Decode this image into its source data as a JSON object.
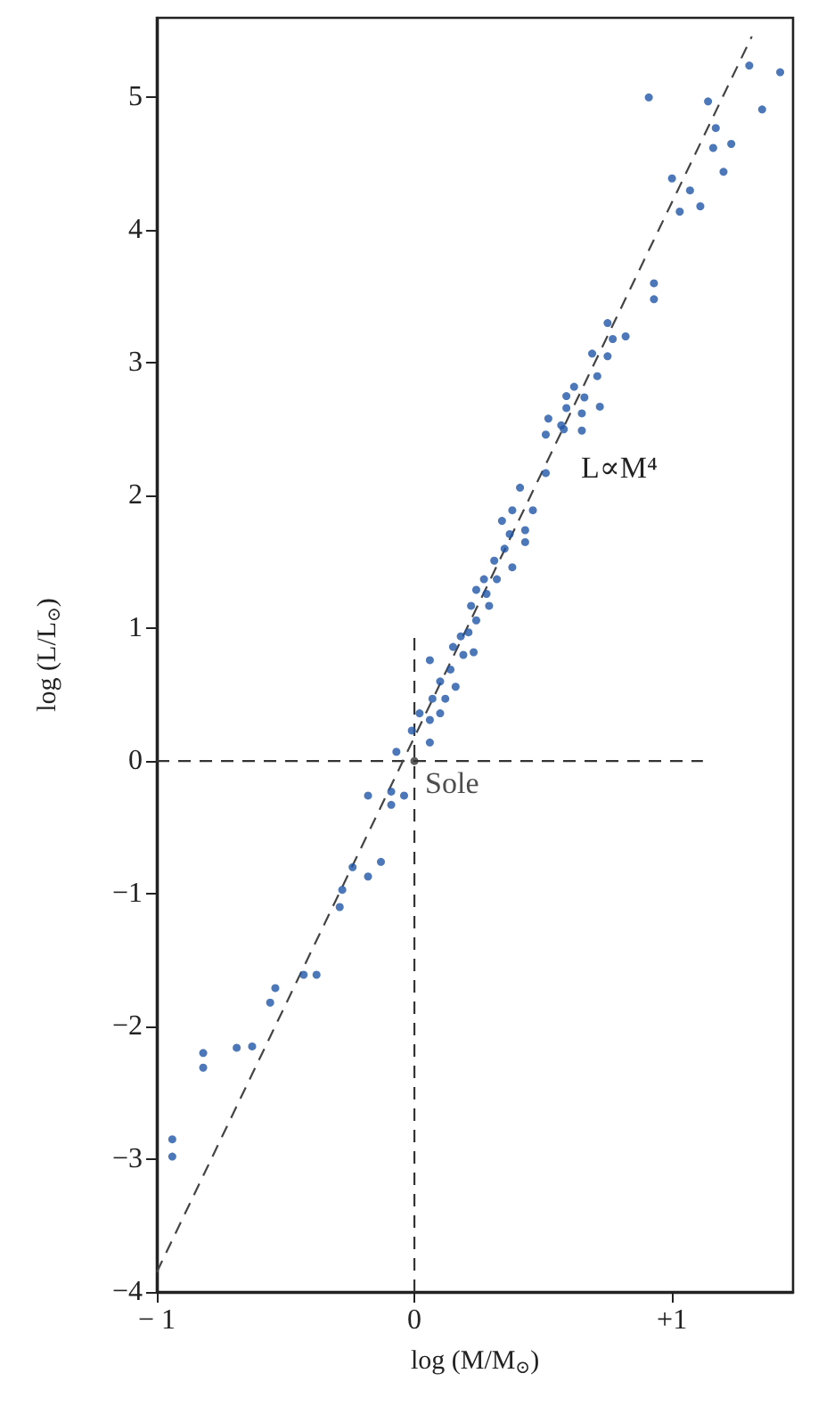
{
  "chart_data": {
    "type": "scatter",
    "xlabel": "log (M/M$_{⊙}$)",
    "ylabel": "log (L/L$_{⊙}$)",
    "xlim": [
      -1,
      1.47
    ],
    "ylim": [
      -4,
      5.6
    ],
    "xticks": [
      {
        "value": -1,
        "label": "− 1"
      },
      0,
      {
        "value": 1,
        "label": "+1"
      }
    ],
    "yticks": [
      {
        "value": -4,
        "label": "−4"
      },
      {
        "value": -3,
        "label": "−3"
      },
      {
        "value": -2,
        "label": "−2"
      },
      {
        "value": -1,
        "label": "−1"
      },
      0,
      1,
      2,
      3,
      4,
      5
    ],
    "grid": false,
    "marker": "circle",
    "annotations": [
      {
        "text": "Sole",
        "x": 0,
        "y": 0
      },
      "L∝M⁴"
    ],
    "series": [
      {
        "type": "line",
        "color": "#333333",
        "line_style": "dashed",
        "marker": "none",
        "x": [
          -1,
          1.12
        ],
        "values": [
          0,
          0
        ]
      },
      {
        "type": "line",
        "color": "#333333",
        "line_style": "dashed",
        "marker": "none",
        "x": [
          0,
          0
        ],
        "values": [
          -4,
          0.97
        ]
      },
      {
        "type": "line",
        "color": "#444444",
        "line_style": "dashed",
        "marker": "none",
        "x": [
          -1,
          1.31
        ],
        "values": [
          -3.85,
          5.46
        ]
      },
      {
        "color": "#1f55a8",
        "x": [
          -0.94,
          -0.94,
          -0.82,
          -0.82,
          -0.69,
          -0.63,
          -0.56,
          -0.54,
          -0.43,
          -0.38,
          -0.29,
          -0.28,
          -0.24,
          -0.18,
          -0.13,
          -0.18,
          -0.09,
          -0.09,
          -0.04,
          -0.07,
          -0.01,
          0.06,
          0.02,
          0.06,
          0.1,
          0.07,
          0.12,
          0.06,
          0.1,
          0.14,
          0.16,
          0.15,
          0.19,
          0.18,
          0.21,
          0.23,
          0.24,
          0.22,
          0.24,
          0.28,
          0.29,
          0.27,
          0.31,
          0.32,
          0.35,
          0.38,
          0.34,
          0.37,
          0.38,
          0.43,
          0.43,
          0.41,
          0.46,
          0.51,
          0.51,
          0.58,
          0.65,
          0.52,
          0.57,
          0.59,
          0.59,
          0.62,
          0.65,
          0.66,
          0.72,
          0.71,
          0.69,
          0.75,
          0.75,
          0.77,
          0.82,
          0.93,
          0.93,
          0.91,
          1.0,
          1.03,
          1.07,
          1.11,
          1.14,
          1.17,
          1.16,
          1.23,
          1.2,
          1.3,
          1.42,
          1.35
        ],
        "values": [
          -2.85,
          -2.98,
          -2.2,
          -2.31,
          -2.16,
          -2.15,
          -1.82,
          -1.71,
          -1.61,
          -1.61,
          -1.1,
          -0.97,
          -0.8,
          -0.87,
          -0.76,
          -0.26,
          -0.23,
          -0.33,
          -0.26,
          0.07,
          0.23,
          0.14,
          0.36,
          0.31,
          0.36,
          0.47,
          0.47,
          0.76,
          0.6,
          0.69,
          0.56,
          0.86,
          0.8,
          0.94,
          0.97,
          0.82,
          1.06,
          1.17,
          1.29,
          1.26,
          1.17,
          1.37,
          1.51,
          1.37,
          1.6,
          1.46,
          1.81,
          1.71,
          1.89,
          1.74,
          1.65,
          2.06,
          1.89,
          2.17,
          2.46,
          2.5,
          2.49,
          2.58,
          2.53,
          2.66,
          2.75,
          2.82,
          2.62,
          2.74,
          2.67,
          2.9,
          3.07,
          3.05,
          3.3,
          3.18,
          3.2,
          3.6,
          3.48,
          5.0,
          4.39,
          4.14,
          4.3,
          4.18,
          4.97,
          4.77,
          4.62,
          4.65,
          4.44,
          5.24,
          5.19,
          4.91
        ]
      },
      {
        "color": "#333333",
        "x": [
          0
        ],
        "values": [
          0
        ]
      }
    ]
  }
}
